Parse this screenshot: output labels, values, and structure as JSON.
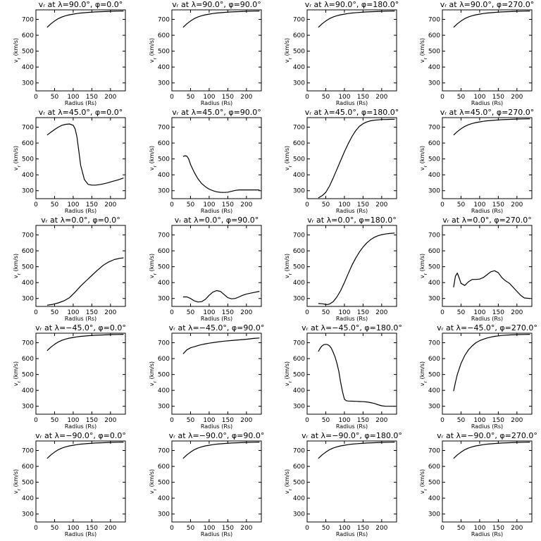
{
  "chart_data": {
    "type": "line",
    "layout": {
      "rows": 5,
      "cols": 4
    },
    "shared": {
      "xlabel": "Radius (Rs)",
      "ylabel": "v",
      "ylabel_sub": "r",
      "ylabel_unit": "(km/s)",
      "xlim": [
        0,
        240
      ],
      "ylim": [
        250,
        760
      ],
      "xticks": [
        0,
        50,
        100,
        150,
        200
      ],
      "yticks": [
        300,
        400,
        500,
        600,
        700
      ]
    },
    "panels": [
      {
        "title": "vᵣ at λ=90.0°, φ=0.0°",
        "x": [
          30,
          40,
          50,
          60,
          70,
          80,
          90,
          100,
          110,
          120,
          140,
          160,
          180,
          200,
          220,
          235
        ],
        "y": [
          650,
          672,
          690,
          705,
          715,
          723,
          729,
          733,
          737,
          740,
          744,
          747,
          749,
          751,
          752,
          753
        ]
      },
      {
        "title": "vᵣ at λ=90.0°, φ=90.0°",
        "x": [
          30,
          40,
          50,
          60,
          70,
          80,
          90,
          100,
          110,
          120,
          140,
          160,
          180,
          200,
          220,
          235
        ],
        "y": [
          650,
          672,
          690,
          705,
          715,
          723,
          729,
          733,
          737,
          740,
          744,
          747,
          749,
          751,
          752,
          753
        ]
      },
      {
        "title": "vᵣ at λ=90.0°, φ=180.0°",
        "x": [
          30,
          40,
          50,
          60,
          70,
          80,
          90,
          100,
          110,
          120,
          140,
          160,
          180,
          200,
          220,
          235
        ],
        "y": [
          650,
          672,
          690,
          705,
          715,
          723,
          729,
          733,
          737,
          740,
          744,
          747,
          749,
          751,
          752,
          753
        ]
      },
      {
        "title": "vᵣ at λ=90.0°, φ=270.0°",
        "x": [
          30,
          40,
          50,
          60,
          70,
          80,
          90,
          100,
          110,
          120,
          140,
          160,
          180,
          200,
          220,
          235
        ],
        "y": [
          650,
          672,
          690,
          705,
          715,
          723,
          729,
          733,
          737,
          740,
          744,
          747,
          749,
          751,
          752,
          753
        ]
      },
      {
        "title": "vᵣ at λ=45.0°, φ=0.0°",
        "x": [
          30,
          40,
          50,
          60,
          70,
          80,
          90,
          100,
          105,
          110,
          115,
          120,
          130,
          140,
          150,
          160,
          175,
          190,
          205,
          220,
          235
        ],
        "y": [
          650,
          668,
          685,
          700,
          712,
          718,
          720,
          712,
          690,
          640,
          550,
          460,
          370,
          340,
          335,
          335,
          340,
          348,
          358,
          368,
          380
        ]
      },
      {
        "title": "vᵣ at λ=45.0°, φ=90.0°",
        "x": [
          30,
          35,
          40,
          45,
          50,
          60,
          70,
          80,
          90,
          100,
          110,
          120,
          130,
          140,
          150,
          160,
          170,
          180,
          200,
          220,
          235
        ],
        "y": [
          515,
          520,
          518,
          500,
          465,
          415,
          375,
          345,
          325,
          310,
          300,
          293,
          290,
          289,
          291,
          296,
          302,
          305,
          305,
          305,
          305
        ]
      },
      {
        "title": "vᵣ at λ=45.0°, φ=180.0°",
        "x": [
          30,
          40,
          50,
          60,
          70,
          80,
          90,
          100,
          110,
          120,
          130,
          140,
          150,
          160,
          170,
          180,
          190,
          200,
          210,
          220,
          235
        ],
        "y": [
          255,
          268,
          290,
          330,
          380,
          435,
          490,
          545,
          595,
          640,
          677,
          705,
          722,
          733,
          740,
          744,
          746,
          748,
          748,
          749,
          750
        ]
      },
      {
        "title": "vᵣ at λ=45.0°, φ=270.0°",
        "x": [
          30,
          40,
          50,
          60,
          70,
          80,
          90,
          100,
          110,
          120,
          140,
          160,
          180,
          200,
          220,
          235
        ],
        "y": [
          650,
          672,
          690,
          705,
          715,
          723,
          729,
          733,
          737,
          740,
          744,
          747,
          749,
          751,
          752,
          753
        ]
      },
      {
        "title": "vᵣ at λ=0.0°, φ=0.0°",
        "x": [
          30,
          45,
          60,
          75,
          90,
          105,
          120,
          135,
          150,
          165,
          180,
          195,
          210,
          225,
          235
        ],
        "y": [
          258,
          263,
          272,
          285,
          305,
          340,
          378,
          412,
          445,
          478,
          508,
          530,
          545,
          553,
          556
        ]
      },
      {
        "title": "vᵣ at λ=0.0°, φ=90.0°",
        "x": [
          30,
          40,
          50,
          60,
          70,
          80,
          90,
          100,
          110,
          120,
          130,
          140,
          150,
          160,
          170,
          180,
          190,
          200,
          210,
          220,
          235
        ],
        "y": [
          310,
          310,
          300,
          285,
          278,
          280,
          295,
          320,
          340,
          350,
          345,
          325,
          305,
          298,
          300,
          310,
          320,
          328,
          333,
          338,
          345
        ]
      },
      {
        "title": "vᵣ at λ=0.0°, φ=180.0°",
        "x": [
          30,
          40,
          50,
          55,
          60,
          70,
          80,
          90,
          100,
          110,
          120,
          130,
          140,
          150,
          160,
          170,
          180,
          190,
          200,
          210,
          220,
          235
        ],
        "y": [
          268,
          267,
          263,
          262,
          265,
          280,
          310,
          350,
          400,
          455,
          508,
          553,
          592,
          624,
          650,
          670,
          685,
          695,
          702,
          706,
          709,
          712
        ]
      },
      {
        "title": "vᵣ at λ=0.0°, φ=270.0°",
        "x": [
          30,
          35,
          40,
          45,
          50,
          60,
          70,
          80,
          90,
          100,
          110,
          120,
          130,
          140,
          150,
          160,
          170,
          180,
          190,
          200,
          210,
          220,
          235
        ],
        "y": [
          370,
          440,
          460,
          430,
          395,
          382,
          405,
          420,
          420,
          422,
          432,
          450,
          468,
          475,
          462,
          430,
          410,
          395,
          370,
          345,
          320,
          303,
          300
        ]
      },
      {
        "title": "vᵣ at λ=−45.0°, φ=0.0°",
        "x": [
          30,
          40,
          50,
          60,
          70,
          80,
          90,
          100,
          110,
          120,
          140,
          160,
          180,
          200,
          220,
          235
        ],
        "y": [
          650,
          672,
          690,
          705,
          715,
          723,
          729,
          733,
          737,
          740,
          744,
          747,
          749,
          751,
          752,
          753
        ]
      },
      {
        "title": "vᵣ at λ=−45.0°, φ=90.0°",
        "x": [
          30,
          40,
          50,
          60,
          70,
          80,
          90,
          100,
          120,
          140,
          160,
          180,
          200,
          220,
          235
        ],
        "y": [
          630,
          655,
          668,
          675,
          682,
          688,
          693,
          697,
          704,
          710,
          714,
          718,
          722,
          727,
          730
        ]
      },
      {
        "title": "vᵣ at λ=−45.0°, φ=180.0°",
        "x": [
          30,
          35,
          40,
          45,
          50,
          55,
          60,
          65,
          70,
          75,
          80,
          85,
          90,
          95,
          100,
          105,
          110,
          120,
          130,
          140,
          150,
          160,
          170,
          180,
          190,
          200,
          210,
          220,
          235
        ],
        "y": [
          645,
          665,
          680,
          688,
          690,
          688,
          680,
          665,
          640,
          610,
          570,
          520,
          450,
          390,
          345,
          335,
          333,
          332,
          331,
          330,
          329,
          327,
          323,
          318,
          310,
          303,
          300,
          300,
          300
        ]
      },
      {
        "title": "vᵣ at λ=−45.0°, φ=270.0°",
        "x": [
          30,
          35,
          40,
          50,
          60,
          70,
          80,
          90,
          100,
          110,
          120,
          130,
          140,
          150,
          160,
          180,
          200,
          220,
          235
        ],
        "y": [
          395,
          450,
          500,
          570,
          620,
          655,
          680,
          700,
          713,
          722,
          730,
          735,
          740,
          743,
          746,
          749,
          751,
          752,
          753
        ]
      },
      {
        "title": "vᵣ at λ=−90.0°, φ=0.0°",
        "x": [
          30,
          40,
          50,
          60,
          70,
          80,
          90,
          100,
          110,
          120,
          140,
          160,
          180,
          200,
          220,
          235
        ],
        "y": [
          650,
          672,
          690,
          705,
          715,
          723,
          729,
          733,
          737,
          740,
          744,
          747,
          749,
          751,
          752,
          753
        ]
      },
      {
        "title": "vᵣ at λ=−90.0°, φ=90.0°",
        "x": [
          30,
          40,
          50,
          60,
          70,
          80,
          90,
          100,
          110,
          120,
          140,
          160,
          180,
          200,
          220,
          235
        ],
        "y": [
          650,
          672,
          690,
          705,
          715,
          723,
          729,
          733,
          737,
          740,
          744,
          747,
          749,
          751,
          752,
          753
        ]
      },
      {
        "title": "vᵣ at λ=−90.0°, φ=180.0°",
        "x": [
          30,
          40,
          50,
          60,
          70,
          80,
          90,
          100,
          110,
          120,
          140,
          160,
          180,
          200,
          220,
          235
        ],
        "y": [
          650,
          672,
          690,
          705,
          715,
          723,
          729,
          733,
          737,
          740,
          744,
          747,
          749,
          751,
          752,
          753
        ]
      },
      {
        "title": "vᵣ at λ=−90.0°, φ=270.0°",
        "x": [
          30,
          40,
          50,
          60,
          70,
          80,
          90,
          100,
          110,
          120,
          140,
          160,
          180,
          200,
          220,
          235
        ],
        "y": [
          650,
          672,
          690,
          705,
          715,
          723,
          729,
          733,
          737,
          740,
          744,
          747,
          749,
          751,
          752,
          753
        ]
      }
    ]
  }
}
